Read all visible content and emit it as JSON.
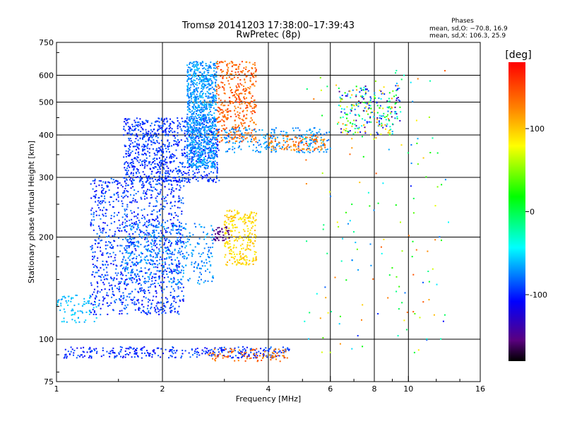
{
  "chart_data": {
    "type": "scatter",
    "title": "Tromsø 20141203 17:38:00–17:39:43",
    "subtitle": "RwPretec (8p)",
    "stats": {
      "heading": "Phases",
      "line1": "mean, sd,O: −70.8, 16.9",
      "line2": "mean, sd,X: 106.3, 25.9"
    },
    "xlabel": "Frequency [MHz]",
    "ylabel": "Stationary phase Virtual Height [km]",
    "xscale": "log",
    "yscale": "log",
    "xlim": [
      1,
      16
    ],
    "ylim": [
      75,
      750
    ],
    "xticks": [
      1,
      2,
      4,
      6,
      8,
      10,
      16
    ],
    "yticks": [
      75,
      100,
      200,
      300,
      400,
      500,
      600,
      750
    ],
    "xgrid": [
      2,
      4,
      6,
      8,
      10
    ],
    "ygrid": [
      100,
      200,
      300,
      400,
      500,
      600
    ],
    "colorbar": {
      "label": "[deg]",
      "range": [
        -180,
        180
      ],
      "ticks": [
        100,
        0,
        -100
      ]
    },
    "clusters": [
      {
        "kind": "sporadic-E",
        "x": [
          1.05,
          4.6
        ],
        "h": [
          88,
          95
        ],
        "phase": [
          -115,
          -80
        ],
        "n": 320
      },
      {
        "kind": "sporadic-E X",
        "x": [
          2.7,
          4.6
        ],
        "h": [
          86,
          94
        ],
        "phase": [
          120,
          150
        ],
        "n": 90
      },
      {
        "kind": "low echoes",
        "x": [
          1.0,
          1.3
        ],
        "h": [
          112,
          135
        ],
        "phase": [
          -70,
          -50
        ],
        "n": 80
      },
      {
        "kind": "E-layer O",
        "x": [
          1.25,
          2.3
        ],
        "h": [
          118,
          300
        ],
        "phase": [
          -115,
          -75
        ],
        "n": 1100
      },
      {
        "kind": "E-layer",
        "x": [
          1.55,
          2.8
        ],
        "h": [
          145,
          220
        ],
        "phase": [
          -85,
          -60
        ],
        "n": 380
      },
      {
        "kind": "F-layer O trace",
        "x": [
          1.55,
          2.9
        ],
        "h": [
          290,
          450
        ],
        "phase": [
          -110,
          -80
        ],
        "n": 900
      },
      {
        "kind": "F-layer O cusp",
        "x": [
          2.35,
          2.85
        ],
        "h": [
          320,
          660
        ],
        "phase": [
          -85,
          -55
        ],
        "n": 900
      },
      {
        "kind": "F-layer X",
        "x": [
          2.85,
          3.7
        ],
        "h": [
          380,
          660
        ],
        "phase": [
          120,
          160
        ],
        "n": 400
      },
      {
        "kind": "F-layer tail",
        "x": [
          3.0,
          6.0
        ],
        "h": [
          355,
          420
        ],
        "phase": [
          -85,
          -60
        ],
        "n": 220
      },
      {
        "kind": "X high",
        "x": [
          4.0,
          5.8
        ],
        "h": [
          360,
          400
        ],
        "phase": [
          110,
          150
        ],
        "n": 110
      },
      {
        "kind": "E-layer X",
        "x": [
          3.0,
          3.7
        ],
        "h": [
          165,
          240
        ],
        "phase": [
          80,
          110
        ],
        "n": 260
      },
      {
        "kind": "E-layer X violet",
        "x": [
          2.8,
          3.1
        ],
        "h": [
          195,
          215
        ],
        "phase": [
          -160,
          -145
        ],
        "n": 40
      },
      {
        "kind": "F high",
        "x": [
          6.3,
          9.5
        ],
        "h": [
          400,
          560
        ],
        "phase": [
          -160,
          120
        ],
        "n": 260
      },
      {
        "kind": "scatter",
        "x": [
          5.0,
          13.0
        ],
        "h": [
          90,
          620
        ],
        "phase": [
          -110,
          150
        ],
        "n": 160
      }
    ]
  }
}
